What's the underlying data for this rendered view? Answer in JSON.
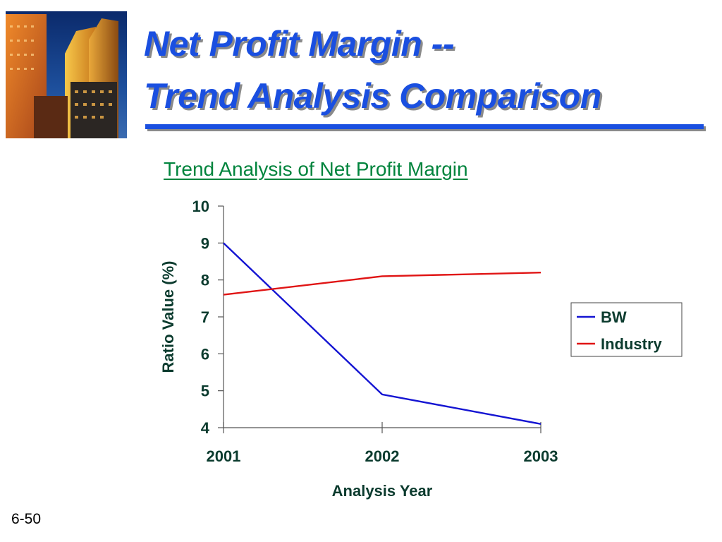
{
  "slide": {
    "title_line_1": "Net Profit Margin --",
    "title_line_2": "Trend Analysis Comparison",
    "slide_number": "6-50",
    "colors": {
      "title": "#1a4fe0",
      "chart_title": "#00843d",
      "axis_text": "#0b3b2e"
    }
  },
  "chart_data": {
    "type": "line",
    "title": "Trend Analysis of Net Profit Margin",
    "xlabel": "Analysis Year",
    "ylabel": "Ratio Value (%)",
    "categories": [
      "2001",
      "2002",
      "2003"
    ],
    "ylim": [
      4,
      10
    ],
    "yticks": [
      "4",
      "5",
      "6",
      "7",
      "8",
      "9",
      "10"
    ],
    "grid": false,
    "legend_position": "right",
    "series": [
      {
        "name": "BW",
        "values": [
          9.0,
          4.9,
          4.1
        ],
        "color": "#1414d2"
      },
      {
        "name": "Industry",
        "values": [
          7.6,
          8.1,
          8.2
        ],
        "color": "#e01414"
      }
    ]
  }
}
